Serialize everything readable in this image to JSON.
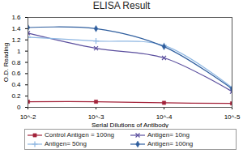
{
  "chart_data": {
    "type": "line",
    "title": "ELISA Result",
    "x_label": "Serial Dilutions of Antibody",
    "y_label": "O.D. Reading",
    "categories": [
      "10^-2",
      "10^-3",
      "10^-4",
      "10^-5"
    ],
    "series": [
      {
        "name": "Control Antigen = 100ng",
        "color": "#a3233a",
        "marker": "square",
        "values": [
          0.1,
          0.1,
          0.08,
          0.07
        ]
      },
      {
        "name": "Antigen= 10ng",
        "color": "#5b4f9e",
        "marker": "times",
        "values": [
          1.32,
          1.05,
          0.88,
          0.28
        ]
      },
      {
        "name": "Antigen= 50ng",
        "color": "#8db6e2",
        "marker": "plus",
        "values": [
          1.25,
          1.18,
          1.1,
          0.35
        ]
      },
      {
        "name": "Antigen= 100ng",
        "color": "#2f5e9e",
        "marker": "diamond",
        "values": [
          1.42,
          1.4,
          1.08,
          0.33
        ]
      }
    ],
    "ylim": [
      0,
      1.6
    ],
    "yticks": [
      0,
      0.2,
      0.4,
      0.6,
      0.8,
      1,
      1.2,
      1.4,
      1.6
    ],
    "grid": false,
    "legend": "bottom"
  }
}
